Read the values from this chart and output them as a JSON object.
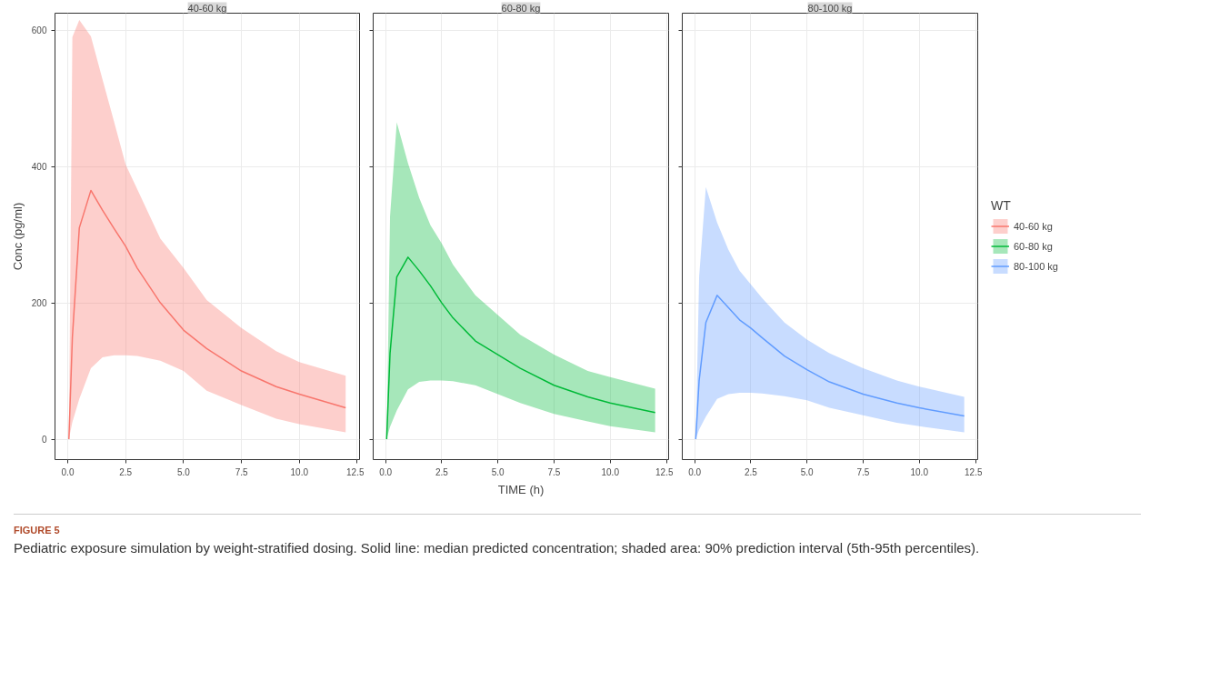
{
  "chart_data": [
    {
      "type": "line",
      "title": "40-60 kg",
      "ylabel": "Conc (pg/ml)",
      "xlim": [
        -0.55,
        12.6
      ],
      "xticks": [
        {
          "value": 0,
          "label": "0.0"
        },
        2.5,
        {
          "value": 5,
          "label": "5.0"
        },
        7.5,
        {
          "value": 10,
          "label": "10.0"
        },
        12.5
      ],
      "ylim": [
        -30,
        625
      ],
      "yticks": [
        0,
        200,
        400,
        600
      ],
      "grid": true,
      "legend": "right",
      "marker": "none",
      "line_style": "solid",
      "annotations": [
        "FIGURE 5",
        "Pediatric exposure simulation by weight-stratified dosing. Solid line: median predicted concentration; shaded area: 90% prediction interval (5th-95th percentiles)."
      ],
      "series": [
        {
          "name": "40-60 kg",
          "color": "#f8766d",
          "x": [
            0.05,
            0.2,
            0.5,
            1,
            1.5,
            2,
            2.5,
            3,
            4,
            5,
            6,
            7.5,
            9,
            10,
            12
          ],
          "values": [
            0,
            149,
            310,
            365,
            336,
            309,
            283,
            251,
            200,
            160,
            133,
            100,
            77,
            66,
            46
          ],
          "lower": [
            0,
            25,
            59,
            104,
            120,
            123,
            123,
            122,
            115,
            100,
            71,
            50,
            30,
            22,
            10
          ],
          "upper": [
            0,
            590,
            615,
            591,
            528,
            466,
            403,
            367,
            294,
            251,
            204,
            163,
            129,
            113,
            93
          ]
        }
      ]
    },
    {
      "type": "line",
      "title": "60-80 kg",
      "xlabel": "TIME (h)",
      "xlim": [
        -0.55,
        12.6
      ],
      "xticks": [
        {
          "value": 0,
          "label": "0.0"
        },
        2.5,
        {
          "value": 5,
          "label": "5.0"
        },
        7.5,
        {
          "value": 10,
          "label": "10.0"
        },
        12.5
      ],
      "ylim": [
        -30,
        625
      ],
      "yticks": [
        0,
        200,
        400,
        600
      ],
      "grid": true,
      "legend": "right",
      "tick_labels": "x",
      "marker": "none",
      "line_style": "solid",
      "series": [
        {
          "name": "60-80 kg",
          "color": "#00ba38",
          "x": [
            0.05,
            0.2,
            0.5,
            1,
            1.5,
            2,
            2.5,
            3,
            4,
            5,
            6,
            7.5,
            9,
            10,
            12
          ],
          "values": [
            0,
            126,
            238,
            267,
            247,
            225,
            200,
            178,
            144,
            124,
            104,
            79,
            62,
            53,
            39
          ],
          "lower": [
            0,
            18,
            42,
            73,
            84,
            86,
            86,
            85,
            79,
            66,
            53,
            37,
            26,
            19,
            10
          ],
          "upper": [
            0,
            327,
            465,
            405,
            354,
            314,
            287,
            256,
            211,
            182,
            153,
            124,
            100,
            91,
            74
          ]
        }
      ]
    },
    {
      "type": "line",
      "title": "80-100 kg",
      "legend_title": "WT",
      "xlim": [
        -0.55,
        12.6
      ],
      "xticks": [
        {
          "value": 0,
          "label": "0.0"
        },
        2.5,
        {
          "value": 5,
          "label": "5.0"
        },
        7.5,
        {
          "value": 10,
          "label": "10.0"
        },
        12.5
      ],
      "ylim": [
        -30,
        625
      ],
      "yticks": [
        0,
        200,
        400,
        600
      ],
      "grid": true,
      "legend": "right",
      "tick_labels": "x",
      "marker": "none",
      "line_style": "solid",
      "series": [
        {
          "name": "80-100 kg",
          "color": "#619cff",
          "x": [
            0.05,
            0.2,
            0.5,
            1,
            1.5,
            2,
            2.5,
            3,
            4,
            5,
            6,
            7.5,
            9,
            10,
            12
          ],
          "values": [
            0,
            86,
            171,
            211,
            193,
            175,
            163,
            149,
            122,
            102,
            84,
            66,
            53,
            46,
            34
          ],
          "lower": [
            0,
            14,
            33,
            59,
            66,
            68,
            68,
            67,
            63,
            57,
            46,
            35,
            24,
            19,
            10
          ],
          "upper": [
            0,
            238,
            370,
            318,
            278,
            247,
            227,
            207,
            171,
            146,
            126,
            104,
            86,
            77,
            62
          ]
        }
      ]
    }
  ]
}
